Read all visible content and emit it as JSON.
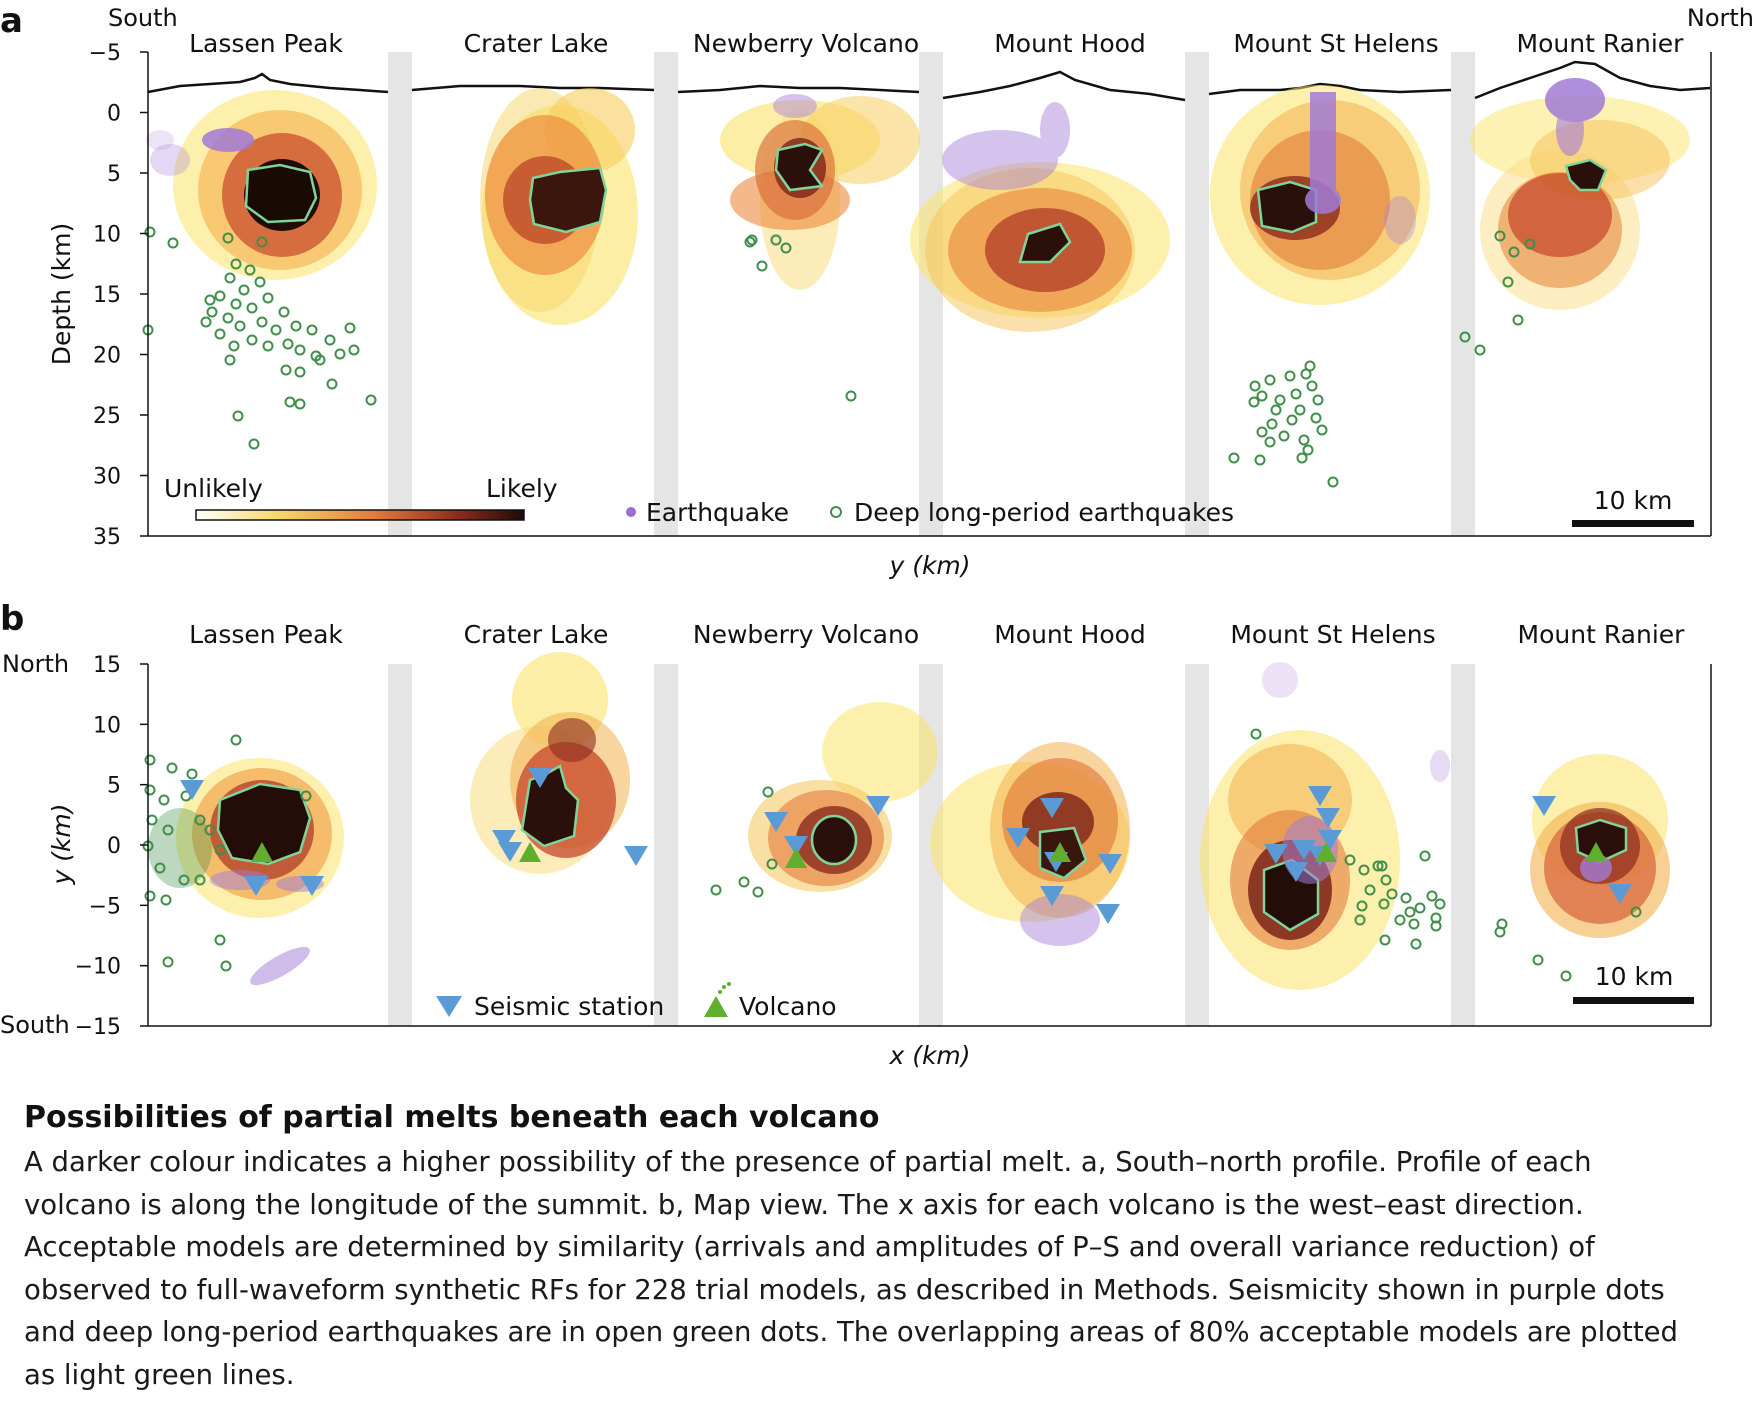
{
  "panels": {
    "a": {
      "letter": "a",
      "left_label": "South",
      "right_label": "North",
      "ylabel": "Depth (km)",
      "xlabel": "y (km)",
      "yticks": [
        -5,
        0,
        5,
        10,
        15,
        20,
        25,
        30,
        35
      ],
      "colorbar": {
        "left": "Unlikely",
        "right": "Likely"
      },
      "legend": {
        "earthquake": "Earthquake",
        "dlp": "Deep long-period earthquakes"
      },
      "scalebar": "10 km"
    },
    "b": {
      "letter": "b",
      "top_label": "North",
      "bottom_label": "South",
      "ylabel": "y (km)",
      "xlabel": "x (km)",
      "yticks": [
        15,
        10,
        5,
        0,
        -5,
        -10,
        -15
      ],
      "legend": {
        "station": "Seismic station",
        "volcano": "Volcano"
      },
      "scalebar": "10 km"
    }
  },
  "volcanoes": [
    "Lassen Peak",
    "Crater Lake",
    "Newberry Volcano",
    "Mount Hood",
    "Mount St Helens",
    "Mount Ranier"
  ],
  "colors": {
    "unlikely": "#fbf1a6",
    "mid": "#e8913e",
    "likely": "#2a0f0a",
    "earthquake": "#9a6fd0",
    "dlp": "#3f8f4a",
    "station": "#5b9bd5",
    "volcano": "#5fae2e",
    "contour": "#7fd49a"
  },
  "caption": {
    "title": "Possibilities of partial melts beneath each volcano",
    "lines": [
      "A darker colour indicates a higher possibility of the presence of partial melt. a, South–north profile. Profile of each",
      "volcano is along the longitude of the summit. b, Map view. The x axis for each volcano is the west–east direction.",
      "Acceptable models are determined by similarity (arrivals and amplitudes of P–S and overall variance reduction) of",
      "observed to full-waveform synthetic RFs for 228 trial models, as described in Methods. Seismicity shown in purple dots",
      "and deep long-period earthquakes are in open green dots. The overlapping areas of 80% acceptable models are plotted",
      "as light green lines."
    ]
  }
}
